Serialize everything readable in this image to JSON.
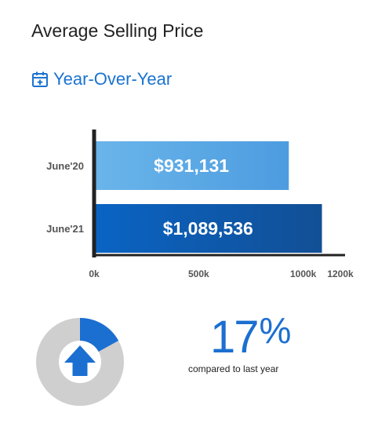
{
  "title": "Average Selling Price",
  "subtitle": "Year-Over-Year",
  "icon": "calendar-plus-icon",
  "colors": {
    "accent": "#1a73d1",
    "bar_2020": "#5aa6e2",
    "bar_2021": "#0b5bb5",
    "donut_bg": "#cfcfcf",
    "donut_fill": "#1b6fd0"
  },
  "chart_data": {
    "type": "bar",
    "orientation": "horizontal",
    "categories": [
      "June'20",
      "June'21"
    ],
    "values": [
      931131,
      1089536
    ],
    "data_labels": [
      "$931,131",
      "$1,089,536"
    ],
    "xlim": [
      0,
      1200000
    ],
    "xticks": [
      0,
      500000,
      1000000,
      1200000
    ],
    "xtick_labels": [
      "0k",
      "500k",
      "1000k",
      "1200k"
    ],
    "grid": false
  },
  "change": {
    "percent": 17,
    "number": "17",
    "sign": "%",
    "caption": "compared to last year",
    "direction": "up",
    "icon": "arrow-up-icon"
  }
}
